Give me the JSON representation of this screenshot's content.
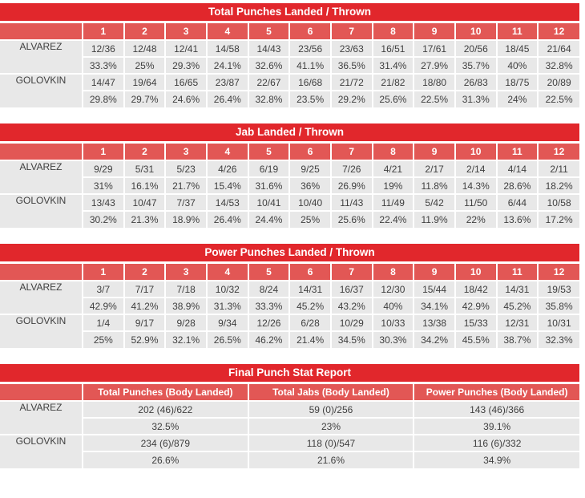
{
  "colors": {
    "title_bar_red": "#e1272c",
    "header_row_red": "#e25755",
    "cell_gray": "#e8e8e8",
    "header_text": "#ffffff",
    "cell_text": "#3f3f3f"
  },
  "chart_data": [
    {
      "type": "table",
      "title": "Total Punches Landed / Thrown",
      "columns": [
        "1",
        "2",
        "3",
        "4",
        "5",
        "6",
        "7",
        "8",
        "9",
        "10",
        "11",
        "12"
      ],
      "series": [
        {
          "name": "ALVAREZ",
          "values": [
            "12/36",
            "12/48",
            "12/41",
            "14/58",
            "14/43",
            "23/56",
            "23/63",
            "16/51",
            "17/61",
            "20/56",
            "18/45",
            "21/64"
          ],
          "pct": [
            "33.3%",
            "25%",
            "29.3%",
            "24.1%",
            "32.6%",
            "41.1%",
            "36.5%",
            "31.4%",
            "27.9%",
            "35.7%",
            "40%",
            "32.8%"
          ]
        },
        {
          "name": "GOLOVKIN",
          "values": [
            "14/47",
            "19/64",
            "16/65",
            "23/87",
            "22/67",
            "16/68",
            "21/72",
            "21/82",
            "18/80",
            "26/83",
            "18/75",
            "20/89"
          ],
          "pct": [
            "29.8%",
            "29.7%",
            "24.6%",
            "26.4%",
            "32.8%",
            "23.5%",
            "29.2%",
            "25.6%",
            "22.5%",
            "31.3%",
            "24%",
            "22.5%"
          ]
        }
      ]
    },
    {
      "type": "table",
      "title": "Jab Landed / Thrown",
      "columns": [
        "1",
        "2",
        "3",
        "4",
        "5",
        "6",
        "7",
        "8",
        "9",
        "10",
        "11",
        "12"
      ],
      "series": [
        {
          "name": "ALVAREZ",
          "values": [
            "9/29",
            "5/31",
            "5/23",
            "4/26",
            "6/19",
            "9/25",
            "7/26",
            "4/21",
            "2/17",
            "2/14",
            "4/14",
            "2/11"
          ],
          "pct": [
            "31%",
            "16.1%",
            "21.7%",
            "15.4%",
            "31.6%",
            "36%",
            "26.9%",
            "19%",
            "11.8%",
            "14.3%",
            "28.6%",
            "18.2%"
          ]
        },
        {
          "name": "GOLOVKIN",
          "values": [
            "13/43",
            "10/47",
            "7/37",
            "14/53",
            "10/41",
            "10/40",
            "11/43",
            "11/49",
            "5/42",
            "11/50",
            "6/44",
            "10/58"
          ],
          "pct": [
            "30.2%",
            "21.3%",
            "18.9%",
            "26.4%",
            "24.4%",
            "25%",
            "25.6%",
            "22.4%",
            "11.9%",
            "22%",
            "13.6%",
            "17.2%"
          ]
        }
      ]
    },
    {
      "type": "table",
      "title": "Power Punches Landed / Thrown",
      "columns": [
        "1",
        "2",
        "3",
        "4",
        "5",
        "6",
        "7",
        "8",
        "9",
        "10",
        "11",
        "12"
      ],
      "series": [
        {
          "name": "ALVAREZ",
          "values": [
            "3/7",
            "7/17",
            "7/18",
            "10/32",
            "8/24",
            "14/31",
            "16/37",
            "12/30",
            "15/44",
            "18/42",
            "14/31",
            "19/53"
          ],
          "pct": [
            "42.9%",
            "41.2%",
            "38.9%",
            "31.3%",
            "33.3%",
            "45.2%",
            "43.2%",
            "40%",
            "34.1%",
            "42.9%",
            "45.2%",
            "35.8%"
          ]
        },
        {
          "name": "GOLOVKIN",
          "values": [
            "1/4",
            "9/17",
            "9/28",
            "9/34",
            "12/26",
            "6/28",
            "10/29",
            "10/33",
            "13/38",
            "15/33",
            "12/31",
            "10/31"
          ],
          "pct": [
            "25%",
            "52.9%",
            "32.1%",
            "26.5%",
            "46.2%",
            "21.4%",
            "34.5%",
            "30.3%",
            "34.2%",
            "45.5%",
            "38.7%",
            "32.3%"
          ]
        }
      ]
    },
    {
      "type": "table",
      "title": "Final Punch Stat Report",
      "columns": [
        "Total Punches (Body Landed)",
        "Total Jabs (Body Landed)",
        "Power Punches (Body Landed)"
      ],
      "series": [
        {
          "name": "ALVAREZ",
          "values": [
            "202 (46)/622",
            "59 (0)/256",
            "143 (46)/366"
          ],
          "pct": [
            "32.5%",
            "23%",
            "39.1%"
          ]
        },
        {
          "name": "GOLOVKIN",
          "values": [
            "234 (6)/879",
            "118 (0)/547",
            "116 (6)/332"
          ],
          "pct": [
            "26.6%",
            "21.6%",
            "34.9%"
          ]
        }
      ]
    }
  ]
}
